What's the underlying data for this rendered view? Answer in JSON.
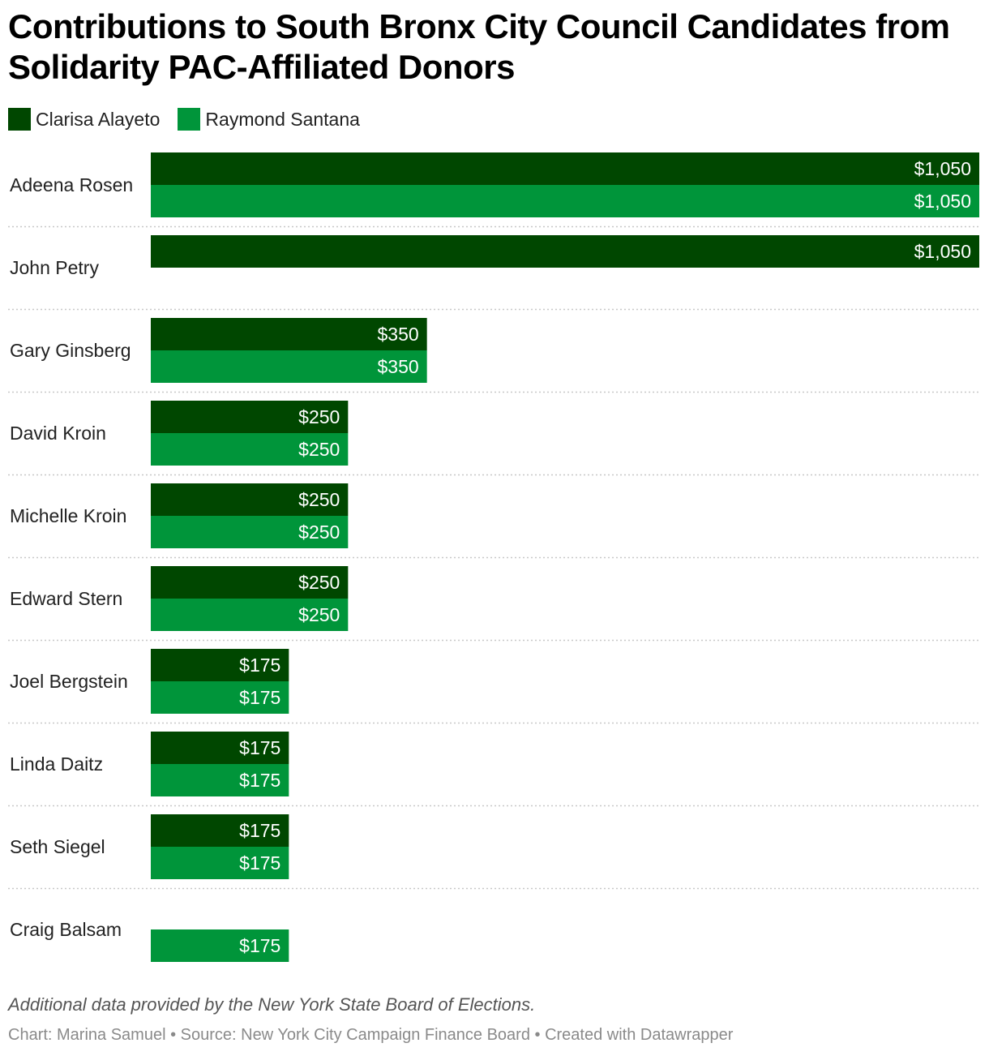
{
  "header": {
    "title": "Contributions to South Bronx City Council Candidates from Solidarity PAC-Affiliated Donors"
  },
  "legend": [
    {
      "label": "Clarisa Alayeto",
      "color": "#004700"
    },
    {
      "label": "Raymond Santana",
      "color": "#00953a"
    }
  ],
  "chart_data": {
    "type": "bar",
    "orientation": "horizontal",
    "grouped": true,
    "categories": [
      "Adeena Rosen",
      "John Petry",
      "Gary Ginsberg",
      "David Kroin",
      "Michelle Kroin",
      "Edward Stern",
      "Joel Bergstein",
      "Linda Daitz",
      "Seth Siegel",
      "Craig Balsam"
    ],
    "series": [
      {
        "name": "Clarisa Alayeto",
        "color": "#004700",
        "values": [
          1050,
          1050,
          350,
          250,
          250,
          250,
          175,
          175,
          175,
          null
        ],
        "labels": [
          "$1,050",
          "$1,050",
          "$350",
          "$250",
          "$250",
          "$250",
          "$175",
          "$175",
          "$175",
          ""
        ]
      },
      {
        "name": "Raymond Santana",
        "color": "#00953a",
        "values": [
          1050,
          null,
          350,
          250,
          250,
          250,
          175,
          175,
          175,
          175
        ],
        "labels": [
          "$1,050",
          "",
          "$350",
          "$250",
          "$250",
          "$250",
          "$175",
          "$175",
          "$175",
          "$175"
        ]
      }
    ],
    "xlim": [
      0,
      1050
    ],
    "grid": false,
    "legend_position": "top-left"
  },
  "footer": {
    "note": "Additional data provided by the New York State Board of Elections.",
    "credits": "Chart: Marina Samuel • Source: New York City Campaign Finance Board • Created with Datawrapper"
  }
}
